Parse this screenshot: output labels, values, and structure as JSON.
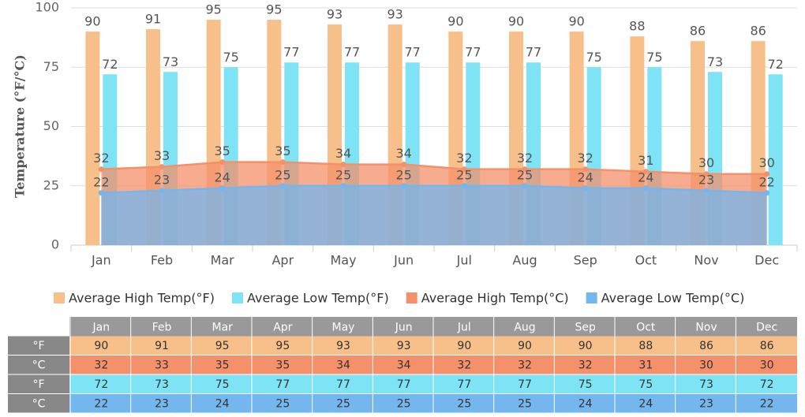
{
  "chart_data": {
    "type": "bar",
    "y_label": "Temperature (°F/°C)",
    "categories": [
      "Jan",
      "Feb",
      "Mar",
      "Apr",
      "May",
      "Jun",
      "Jul",
      "Aug",
      "Sep",
      "Oct",
      "Nov",
      "Dec"
    ],
    "series": [
      {
        "name": "Average High Temp(°F)",
        "type": "bar",
        "color": "#f7c08a",
        "values": [
          90,
          91,
          95,
          95,
          93,
          93,
          90,
          90,
          90,
          88,
          86,
          86
        ]
      },
      {
        "name": "Average Low Temp(°F)",
        "type": "bar",
        "color": "#7ee3f5",
        "values": [
          72,
          73,
          75,
          77,
          77,
          77,
          77,
          77,
          75,
          75,
          73,
          72
        ]
      },
      {
        "name": "Average High Temp(°C)",
        "type": "area",
        "color": "#f4906a",
        "values": [
          32,
          33,
          35,
          35,
          34,
          34,
          32,
          32,
          32,
          31,
          30,
          30
        ]
      },
      {
        "name": "Average Low Temp(°C)",
        "type": "area",
        "color": "#74b6ee",
        "values": [
          22,
          23,
          24,
          25,
          25,
          25,
          25,
          25,
          24,
          24,
          23,
          22
        ]
      }
    ],
    "ylim": [
      0,
      100
    ],
    "yticks": [
      0,
      25,
      50,
      75,
      100
    ],
    "grid": true,
    "legend": "bottom"
  },
  "table": {
    "row_labels": [
      "°F",
      "°C",
      "°F",
      "°C"
    ],
    "row_series": [
      0,
      2,
      1,
      3
    ]
  }
}
